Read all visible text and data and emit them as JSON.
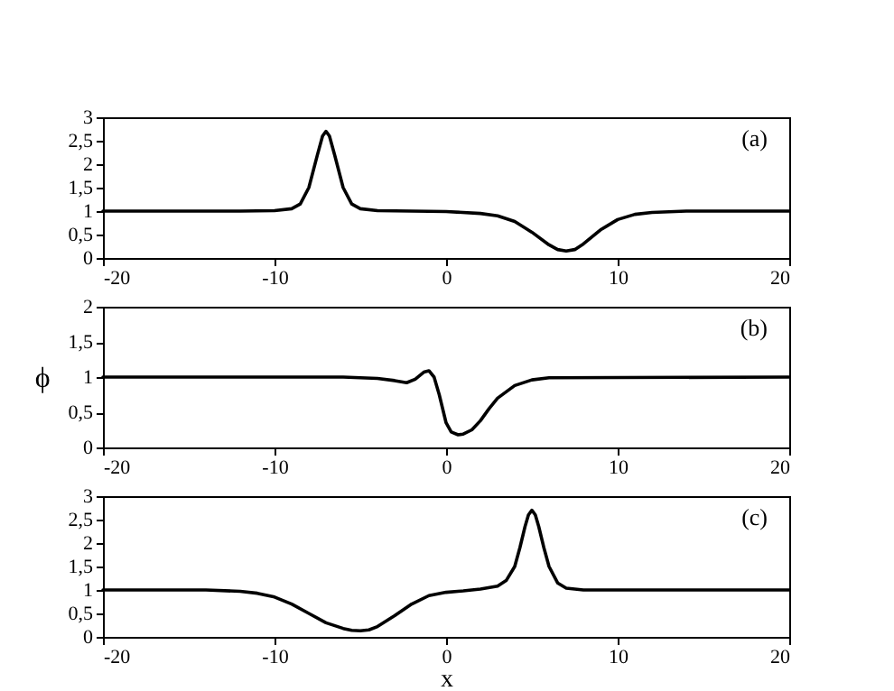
{
  "chart_data": [
    {
      "type": "line",
      "annotations": [
        "(a)"
      ],
      "xlim": [
        -20,
        20
      ],
      "xticks": [
        -20,
        -10,
        0,
        10,
        20
      ],
      "ylim": [
        0,
        3
      ],
      "yticks": [
        0,
        {
          "value": 0.5,
          "label": "0,5"
        },
        1,
        {
          "value": 1.5,
          "label": "1,5"
        },
        2,
        {
          "value": 2.5,
          "label": "2,5"
        },
        3
      ],
      "series": [
        {
          "color": "#000000",
          "x": [
            -20,
            -12,
            -10,
            -9,
            -8.5,
            -8,
            -7.5,
            -7.2,
            -7,
            -6.8,
            -6.5,
            -6,
            -5.5,
            -5,
            -4,
            -2,
            0,
            2,
            3,
            4,
            5,
            6,
            6.5,
            7,
            7.5,
            8,
            9,
            10,
            11,
            12,
            14,
            20
          ],
          "values": [
            1,
            1,
            1.01,
            1.05,
            1.15,
            1.5,
            2.2,
            2.6,
            2.7,
            2.6,
            2.2,
            1.5,
            1.15,
            1.05,
            1.01,
            1,
            0.99,
            0.95,
            0.9,
            0.78,
            0.55,
            0.28,
            0.18,
            0.15,
            0.18,
            0.3,
            0.6,
            0.82,
            0.93,
            0.97,
            1,
            1
          ]
        }
      ]
    },
    {
      "type": "line",
      "ylabel": "ϕ",
      "annotations": [
        "(b)"
      ],
      "xlim": [
        -20,
        20
      ],
      "xticks": [
        -20,
        -10,
        0,
        10,
        20
      ],
      "ylim": [
        0,
        2
      ],
      "yticks": [
        0,
        {
          "value": 0.5,
          "label": "0,5"
        },
        1,
        {
          "value": 1.5,
          "label": "1,5"
        },
        2
      ],
      "series": [
        {
          "color": "#000000",
          "x": [
            -20,
            -6,
            -4,
            -3,
            -2.3,
            -1.8,
            -1.3,
            -1,
            -0.7,
            -0.4,
            0,
            0.3,
            0.7,
            1,
            1.5,
            2,
            2.5,
            3,
            4,
            5,
            6,
            20
          ],
          "values": [
            1,
            1,
            0.98,
            0.95,
            0.92,
            0.97,
            1.07,
            1.09,
            1.0,
            0.75,
            0.35,
            0.22,
            0.18,
            0.19,
            0.25,
            0.38,
            0.55,
            0.7,
            0.88,
            0.96,
            0.99,
            1
          ]
        }
      ]
    },
    {
      "type": "line",
      "xlabel": "x",
      "annotations": [
        "(c)"
      ],
      "xlim": [
        -20,
        20
      ],
      "xticks": [
        -20,
        -10,
        0,
        10,
        20
      ],
      "ylim": [
        0,
        3
      ],
      "yticks": [
        0,
        {
          "value": 0.5,
          "label": "0,5"
        },
        1,
        {
          "value": 1.5,
          "label": "1,5"
        },
        2,
        {
          "value": 2.5,
          "label": "2,5"
        },
        3
      ],
      "series": [
        {
          "color": "#000000",
          "x": [
            -20,
            -14,
            -12,
            -11,
            -10,
            -9,
            -8,
            -7,
            -6,
            -5.5,
            -5,
            -4.5,
            -4,
            -3,
            -2,
            -1,
            0,
            1,
            2,
            3,
            3.5,
            4,
            4.3,
            4.6,
            4.8,
            5,
            5.2,
            5.4,
            5.7,
            6,
            6.5,
            7,
            8,
            10,
            20
          ],
          "values": [
            1,
            1,
            0.97,
            0.93,
            0.85,
            0.7,
            0.5,
            0.3,
            0.18,
            0.14,
            0.13,
            0.15,
            0.22,
            0.45,
            0.7,
            0.88,
            0.95,
            0.98,
            1.02,
            1.08,
            1.2,
            1.5,
            1.9,
            2.35,
            2.6,
            2.7,
            2.6,
            2.35,
            1.9,
            1.5,
            1.15,
            1.04,
            1,
            1,
            1
          ]
        }
      ]
    }
  ]
}
